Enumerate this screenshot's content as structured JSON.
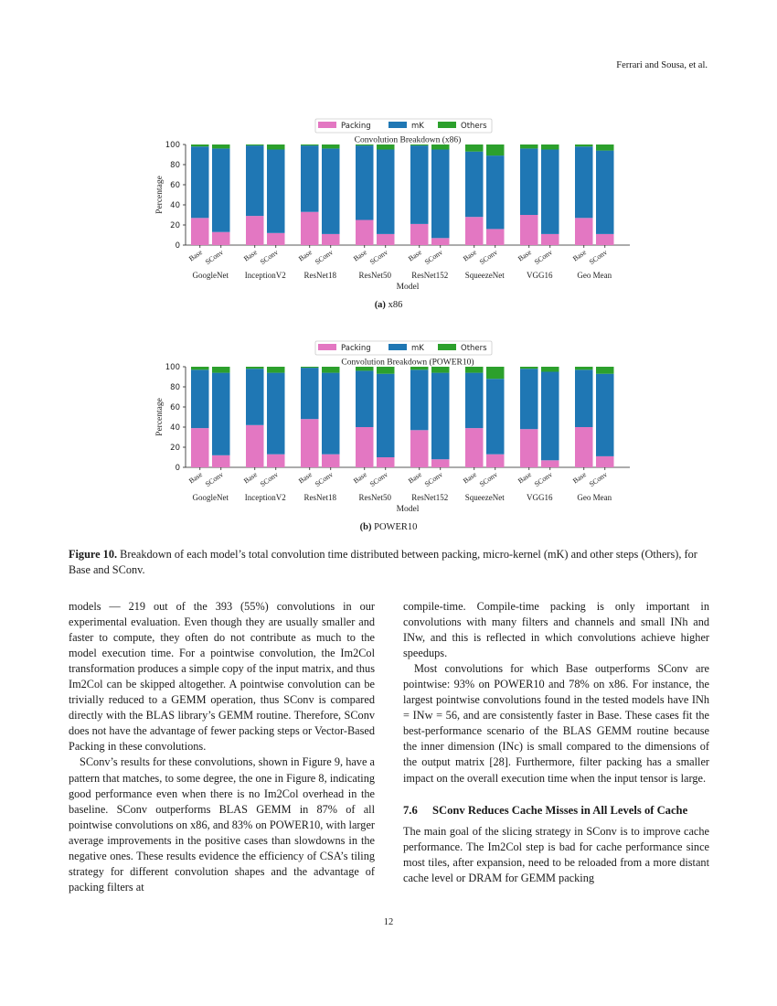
{
  "header": {
    "running_head": "Ferrari and Sousa, et al."
  },
  "legend": {
    "items": [
      {
        "label": "Packing",
        "color": "#e377c2"
      },
      {
        "label": "mK",
        "color": "#1f77b4"
      },
      {
        "label": "Others",
        "color": "#2ca02c"
      }
    ]
  },
  "chart_data": [
    {
      "type": "bar",
      "stacked": true,
      "title": "Convolution Breakdown (x86)",
      "xlabel": "Model",
      "ylabel": "Percentage",
      "ylim": [
        0,
        100
      ],
      "yticks": [
        0,
        20,
        40,
        60,
        80,
        100
      ],
      "groups": [
        "GoogleNet",
        "InceptionV2",
        "ResNet18",
        "ResNet50",
        "ResNet152",
        "SqueezeNet",
        "VGG16",
        "Geo Mean"
      ],
      "bar_labels": [
        "Base",
        "SConv"
      ],
      "series": [
        {
          "name": "Packing",
          "values": [
            [
              27,
              13
            ],
            [
              29,
              12
            ],
            [
              33,
              11
            ],
            [
              25,
              11
            ],
            [
              21,
              7
            ],
            [
              28,
              16
            ],
            [
              30,
              11
            ],
            [
              27,
              11
            ]
          ]
        },
        {
          "name": "mK",
          "values": [
            [
              71,
              83
            ],
            [
              70,
              83
            ],
            [
              66,
              85
            ],
            [
              74,
              84
            ],
            [
              78,
              88
            ],
            [
              65,
              73
            ],
            [
              66,
              84
            ],
            [
              71,
              83
            ]
          ]
        },
        {
          "name": "Others",
          "values": [
            [
              2,
              4
            ],
            [
              1,
              5
            ],
            [
              1,
              4
            ],
            [
              1,
              5
            ],
            [
              1,
              5
            ],
            [
              7,
              11
            ],
            [
              4,
              5
            ],
            [
              2,
              6
            ]
          ]
        }
      ],
      "legend_position": "top-center"
    },
    {
      "type": "bar",
      "stacked": true,
      "title": "Convolution Breakdown (POWER10)",
      "xlabel": "Model",
      "ylabel": "Percentage",
      "ylim": [
        0,
        100
      ],
      "yticks": [
        0,
        20,
        40,
        60,
        80,
        100
      ],
      "groups": [
        "GoogleNet",
        "InceptionV2",
        "ResNet18",
        "ResNet50",
        "ResNet152",
        "SqueezeNet",
        "VGG16",
        "Geo Mean"
      ],
      "bar_labels": [
        "Base",
        "SConv"
      ],
      "series": [
        {
          "name": "Packing",
          "values": [
            [
              39,
              12
            ],
            [
              42,
              13
            ],
            [
              48,
              13
            ],
            [
              40,
              10
            ],
            [
              37,
              8
            ],
            [
              39,
              13
            ],
            [
              38,
              7
            ],
            [
              40,
              11
            ]
          ]
        },
        {
          "name": "mK",
          "values": [
            [
              58,
              82
            ],
            [
              56,
              81
            ],
            [
              51,
              81
            ],
            [
              56,
              83
            ],
            [
              60,
              86
            ],
            [
              55,
              75
            ],
            [
              60,
              88
            ],
            [
              57,
              82
            ]
          ]
        },
        {
          "name": "Others",
          "values": [
            [
              3,
              6
            ],
            [
              2,
              6
            ],
            [
              1,
              6
            ],
            [
              4,
              7
            ],
            [
              3,
              6
            ],
            [
              6,
              12
            ],
            [
              2,
              5
            ],
            [
              3,
              7
            ]
          ]
        }
      ],
      "legend_position": "top-center"
    }
  ],
  "subcaptions": {
    "a_label": "(a)",
    "a_text": "x86",
    "b_label": "(b)",
    "b_text": "POWER10"
  },
  "figure_caption": {
    "label": "Figure 10.",
    "text": "Breakdown of each model’s total convolution time distributed between packing, micro-kernel (mK) and other steps (Others), for Base and SConv."
  },
  "body": {
    "left_p1": "models — 219 out of the 393 (55%) convolutions in our experimental evaluation. Even though they are usually smaller and faster to compute, they often do not contribute as much to the model execution time. For a pointwise convolution, the Im2Col transformation produces a simple copy of the input matrix, and thus Im2Col can be skipped altogether. A pointwise convolution can be trivially reduced to a GEMM operation, thus SConv is compared directly with the BLAS library’s GEMM routine. Therefore, SConv does not have the advantage of fewer packing steps or Vector-Based Packing in these convolutions.",
    "left_p2": "SConv’s results for these convolutions, shown in Figure 9, have a pattern that matches, to some degree, the one in Figure 8, indicating good performance even when there is no Im2Col overhead in the baseline. SConv outperforms BLAS GEMM in 87% of all pointwise convolutions on x86, and 83% on POWER10, with larger average improvements in the positive cases than slowdowns in the negative ones. These results evidence the efficiency of CSA’s tiling strategy for different convolution shapes and the advantage of packing filters at",
    "right_p1": "compile-time. Compile-time packing is only important in convolutions with many filters and channels and small INh and INw, and this is reflected in which convolutions achieve higher speedups.",
    "right_p2": "Most convolutions for which Base outperforms SConv are pointwise: 93% on POWER10 and 78% on x86. For instance, the largest pointwise convolutions found in the tested models have INh = INw = 56, and are consistently faster in Base. These cases fit the best-performance scenario of the BLAS GEMM routine because the inner dimension (INc) is small compared to the dimensions of the output matrix [28]. Furthermore, filter packing has a smaller impact on the overall execution time when the input tensor is large.",
    "section_number": "7.6",
    "section_title": "SConv Reduces Cache Misses in All Levels of Cache",
    "right_p3": "The main goal of the slicing strategy in SConv is to improve cache performance. The Im2Col step is bad for cache performance since most tiles, after expansion, need to be reloaded from a more distant cache level or DRAM for GEMM packing"
  },
  "page_number": "12"
}
